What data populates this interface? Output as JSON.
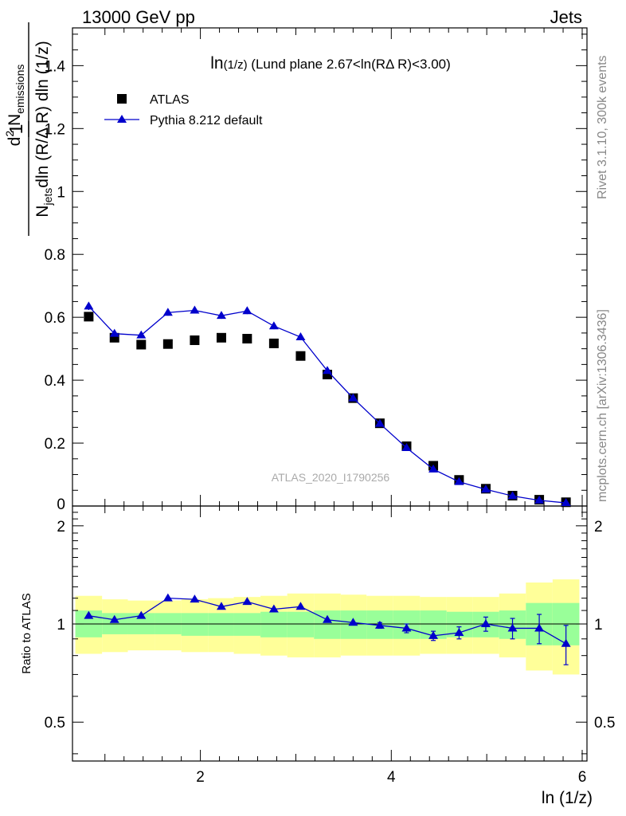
{
  "header": {
    "energy_label": "13000 GeV pp",
    "process_label": "Jets"
  },
  "side": {
    "rivet_label": "Rivet 3.1.10,  300k events",
    "mcplots_label": "mcplots.cern.ch [arXiv:1306.3436]"
  },
  "plot_title": {
    "main": "ln",
    "arg": "(1/z)",
    "rest": " (Lund plane 2.67<ln(RΔ R)<3.00)"
  },
  "y_axis_label": {
    "one": "1",
    "njets": "N",
    "njets_sub": "jets",
    "den_rest": "dln (R/Δ R) dln (1/z)",
    "d2": "d",
    "d2_sup": "2",
    "nem": " N",
    "nem_sub": "emissions"
  },
  "x_axis_label": "ln (1/z)",
  "ratio_y_label": "Ratio to ATLAS",
  "watermark": "ATLAS_2020_I1790256",
  "legend": {
    "atlas": "ATLAS",
    "pythia": "Pythia 8.212 default"
  },
  "colors": {
    "mc": "#0000cc",
    "data": "#000000",
    "band_inner": "#99ff99",
    "band_outer": "#ffff99"
  },
  "chart_data": {
    "type": "scatter",
    "x": [
      0.83,
      1.1,
      1.38,
      1.66,
      1.94,
      2.22,
      2.49,
      2.77,
      3.05,
      3.33,
      3.6,
      3.88,
      4.16,
      4.44,
      4.71,
      4.99,
      5.27,
      5.55,
      5.83
    ],
    "bin_edges": [
      0.69,
      0.97,
      1.24,
      1.52,
      1.8,
      2.08,
      2.35,
      2.63,
      2.91,
      3.19,
      3.47,
      3.74,
      4.02,
      4.3,
      4.58,
      4.85,
      5.13,
      5.41,
      5.69,
      5.97
    ],
    "series": [
      {
        "name": "ATLAS",
        "marker": "square",
        "values": [
          0.602,
          0.535,
          0.513,
          0.515,
          0.527,
          0.535,
          0.532,
          0.517,
          0.477,
          0.418,
          0.343,
          0.263,
          0.19,
          0.128,
          0.083,
          0.055,
          0.033,
          0.02,
          0.012
        ]
      },
      {
        "name": "Pythia 8.212 default",
        "marker": "triangle",
        "values": [
          0.635,
          0.548,
          0.543,
          0.615,
          0.622,
          0.605,
          0.62,
          0.572,
          0.537,
          0.43,
          0.343,
          0.262,
          0.185,
          0.117,
          0.077,
          0.053,
          0.032,
          0.018,
          0.01
        ],
        "errors": [
          0.012,
          0.008,
          0.008,
          0.01,
          0.01,
          0.01,
          0.01,
          0.01,
          0.008,
          0.007,
          0.006,
          0.005,
          0.004,
          0.003,
          0.003,
          0.002,
          0.002,
          0.002,
          0.002
        ]
      }
    ],
    "ratio": {
      "values": [
        1.06,
        1.03,
        1.06,
        1.2,
        1.19,
        1.13,
        1.17,
        1.11,
        1.13,
        1.03,
        1.01,
        0.99,
        0.97,
        0.92,
        0.94,
        1.0,
        0.97,
        0.97,
        0.87
      ],
      "errors": [
        0.01,
        0.01,
        0.01,
        0.01,
        0.01,
        0.01,
        0.01,
        0.01,
        0.01,
        0.01,
        0.01,
        0.02,
        0.03,
        0.03,
        0.04,
        0.05,
        0.07,
        0.1,
        0.12
      ],
      "band_inner_lo": [
        0.91,
        0.93,
        0.93,
        0.93,
        0.92,
        0.92,
        0.92,
        0.91,
        0.91,
        0.9,
        0.9,
        0.9,
        0.9,
        0.9,
        0.91,
        0.91,
        0.9,
        0.86,
        0.86
      ],
      "band_inner_hi": [
        1.1,
        1.08,
        1.08,
        1.08,
        1.08,
        1.08,
        1.08,
        1.09,
        1.09,
        1.1,
        1.1,
        1.1,
        1.1,
        1.1,
        1.09,
        1.09,
        1.1,
        1.16,
        1.16
      ],
      "band_outer_lo": [
        0.81,
        0.82,
        0.83,
        0.83,
        0.82,
        0.82,
        0.81,
        0.8,
        0.79,
        0.79,
        0.8,
        0.8,
        0.8,
        0.81,
        0.81,
        0.81,
        0.79,
        0.72,
        0.7
      ],
      "band_outer_hi": [
        1.22,
        1.19,
        1.18,
        1.18,
        1.19,
        1.2,
        1.21,
        1.22,
        1.24,
        1.24,
        1.23,
        1.22,
        1.22,
        1.21,
        1.21,
        1.21,
        1.24,
        1.34,
        1.37
      ],
      "ylim": [
        0.38,
        2.3
      ],
      "yticks": [
        0.5,
        1,
        2
      ]
    },
    "xlabel": "ln (1/z)",
    "xlim": [
      0.66,
      6.05
    ],
    "xticks": [
      2,
      4,
      6
    ],
    "ylim": [
      0.0,
      1.52
    ],
    "yticks": [
      0.2,
      0.4,
      0.6,
      0.8,
      1,
      1.2,
      1.4
    ],
    "ytick_labels": [
      "0.2",
      "0.4",
      "0.6",
      "0.8",
      "1",
      "1.2",
      "1.4"
    ],
    "ytick_zero_label": "0"
  }
}
